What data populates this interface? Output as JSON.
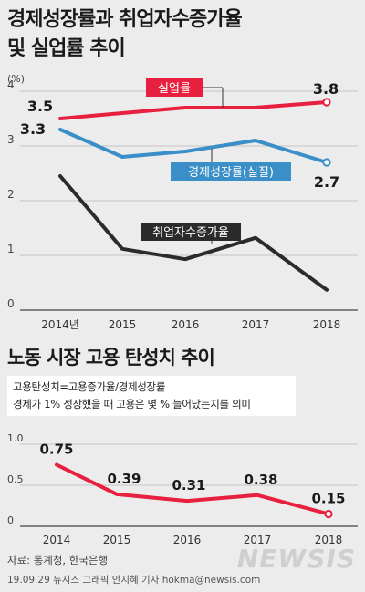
{
  "title_top": [
    "경제성장률과 취업자수증가율",
    "및 실업률 추이"
  ],
  "title_bottom": "노동 시장 고용 탄성치 추이",
  "note": {
    "line1": "고용탄성치=고용증가율/경제성장률",
    "line2": "경제가 1% 성장했을 때 고용은 몇 % 늘어났는지를 의미"
  },
  "source": "자료: 통계청, 한국은행",
  "credit": "19.09.29 뉴시스 그래픽 안지혜 기자 hokma@newsis.com",
  "logo": "NEWSIS",
  "chart_data": [
    {
      "type": "line",
      "unit_label": "(%)",
      "categories": [
        "2014년",
        "2015",
        "2016",
        "2017",
        "2018"
      ],
      "yticks": [
        "0",
        "1",
        "2",
        "3",
        "4"
      ],
      "ylim": [
        0,
        4
      ],
      "series": [
        {
          "name": "실업률",
          "color": "#e8203f",
          "values": [
            3.5,
            3.6,
            3.7,
            3.7,
            3.8
          ],
          "labels": [
            "3.5",
            "",
            "",
            "",
            "3.8"
          ]
        },
        {
          "name": "경제성장률(실질)",
          "color": "#3a8fc8",
          "values": [
            3.3,
            2.8,
            2.9,
            3.1,
            2.7
          ],
          "labels": [
            "3.3",
            "",
            "",
            "",
            "2.7"
          ]
        },
        {
          "name": "취업자수증가율",
          "color": "#2b2b2b",
          "values": [
            2.45,
            1.12,
            0.93,
            1.32,
            0.37
          ],
          "labels": [
            "",
            "",
            "",
            "",
            ""
          ]
        }
      ]
    },
    {
      "type": "line",
      "categories": [
        "2014",
        "2015",
        "2016",
        "2017",
        "2018"
      ],
      "yticks": [
        "0",
        "0.5",
        "1.0"
      ],
      "ylim": [
        0,
        1.0
      ],
      "series": [
        {
          "color": "#e8203f",
          "values": [
            0.75,
            0.39,
            0.31,
            0.38,
            0.15
          ],
          "labels": [
            "0.75",
            "0.39",
            "0.31",
            "0.38",
            "0.15"
          ]
        }
      ]
    }
  ]
}
